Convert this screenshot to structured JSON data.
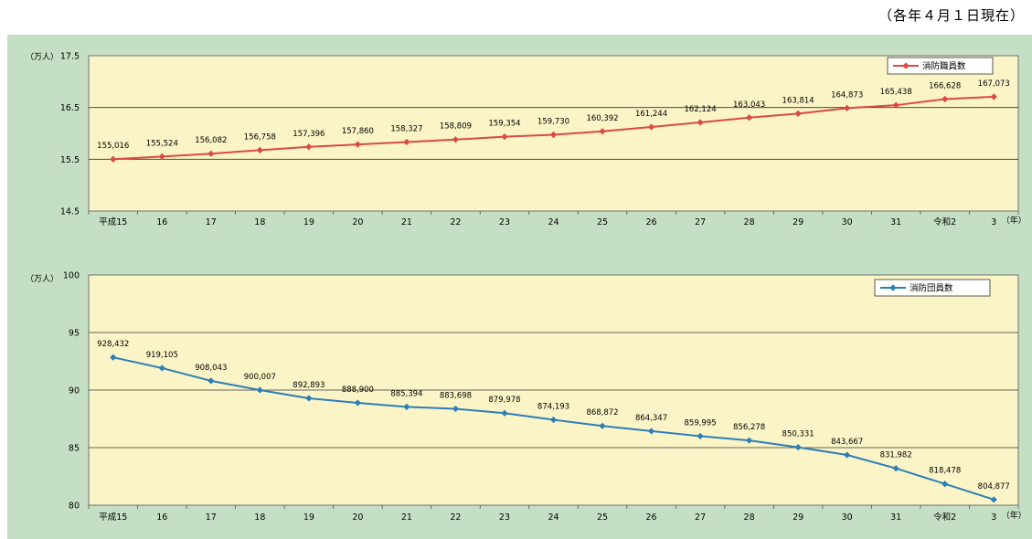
{
  "note": "（各年４月１日現在）",
  "chart_data": [
    {
      "type": "line",
      "y_unit": "（万人）",
      "x_unit": "（年）",
      "ylim": [
        14.5,
        17.5
      ],
      "yticks": [
        14.5,
        15.5,
        16.5,
        17.5
      ],
      "ytick_labels": [
        "14.5",
        "15.5",
        "16.5",
        "17.5"
      ],
      "grid": true,
      "legend_position": "top-right",
      "categories": [
        "平成15",
        "16",
        "17",
        "18",
        "19",
        "20",
        "21",
        "22",
        "23",
        "24",
        "25",
        "26",
        "27",
        "28",
        "29",
        "30",
        "31",
        "令和2",
        "3"
      ],
      "series": [
        {
          "name": "消防職員数",
          "color": "#d94a45",
          "marker": "diamond",
          "values": [
            155016,
            155524,
            156082,
            156758,
            157396,
            157860,
            158327,
            158809,
            159354,
            159730,
            160392,
            161244,
            162124,
            163043,
            163814,
            164873,
            165438,
            166628,
            167073
          ],
          "labels": [
            "155,016",
            "155,524",
            "156,082",
            "156,758",
            "157,396",
            "157,860",
            "158,327",
            "158,809",
            "159,354",
            "159,730",
            "160,392",
            "161,244",
            "162,124",
            "163,043",
            "163,814",
            "164,873",
            "165,438",
            "166,628",
            "167,073"
          ]
        }
      ]
    },
    {
      "type": "line",
      "y_unit": "（万人）",
      "x_unit": "（年）",
      "ylim": [
        80,
        100
      ],
      "yticks": [
        80,
        85,
        90,
        95,
        100
      ],
      "ytick_labels": [
        "80",
        "85",
        "90",
        "95",
        "100"
      ],
      "grid": true,
      "legend_position": "top-right",
      "categories": [
        "平成15",
        "16",
        "17",
        "18",
        "19",
        "20",
        "21",
        "22",
        "23",
        "24",
        "25",
        "26",
        "27",
        "28",
        "29",
        "30",
        "31",
        "令和2",
        "3"
      ],
      "series": [
        {
          "name": "消防団員数",
          "color": "#2b7fb8",
          "marker": "diamond",
          "values": [
            928432,
            919105,
            908043,
            900007,
            892893,
            888900,
            885394,
            883698,
            879978,
            874193,
            868872,
            864347,
            859995,
            856278,
            850331,
            843667,
            831982,
            818478,
            804877
          ],
          "labels": [
            "928,432",
            "919,105",
            "908,043",
            "900,007",
            "892,893",
            "888,900",
            "885,394",
            "883,698",
            "879,978",
            "874,193",
            "868,872",
            "864,347",
            "859,995",
            "856,278",
            "850,331",
            "843,667",
            "831,982",
            "818,478",
            "804,877"
          ]
        }
      ]
    }
  ]
}
